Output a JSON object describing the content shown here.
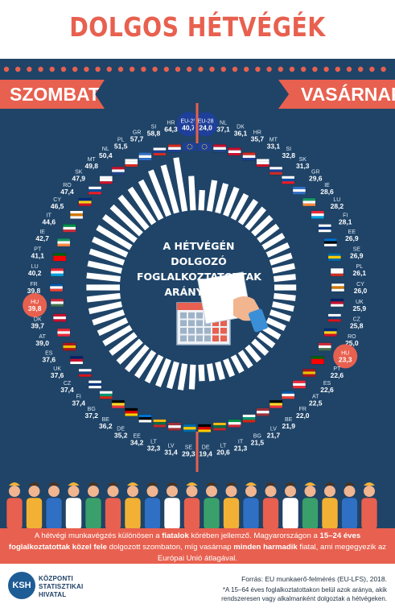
{
  "title": "DOLGOS HÉTVÉGÉK",
  "saturday_label": "SZOMBAT",
  "sunday_label": "VASÁRNAP",
  "center_title": [
    "A HÉTVÉGÉN DOLGOZÓ",
    "FOGLALKOZTATOTTAK",
    "ARÁNYA, %*"
  ],
  "colors": {
    "accent": "#e8604f",
    "panel": "#1f4468",
    "bar": "#ffffff",
    "highlight_hu": "#e8604f",
    "highlight_eu": "#1e3f9a"
  },
  "chart_data": {
    "type": "bar",
    "subtype": "radial",
    "unit": "%",
    "series": [
      {
        "name": "SZOMBAT",
        "categories": [
          "EU-28",
          "HR",
          "SI",
          "GR",
          "PL",
          "NL",
          "MT",
          "SK",
          "RO",
          "CY",
          "IT",
          "IE",
          "PT",
          "LU",
          "FR",
          "HU",
          "DK",
          "AT",
          "ES",
          "UK",
          "CZ",
          "FI",
          "BG",
          "BE",
          "DE",
          "EE",
          "LT",
          "LV",
          "SE"
        ],
        "values": [
          40.7,
          64.3,
          58.8,
          57.7,
          51.5,
          50.4,
          49.8,
          47.9,
          47.4,
          46.5,
          44.6,
          42.7,
          41.1,
          40.2,
          39.8,
          39.8,
          39.7,
          39.0,
          37.6,
          37.6,
          37.4,
          37.4,
          37.2,
          36.2,
          35.2,
          34.2,
          32.3,
          31.4,
          29.3
        ],
        "labels": [
          "40,7",
          "64,3",
          "58,8",
          "57,7",
          "51,5",
          "50,4",
          "49,8",
          "47,9",
          "47,4",
          "46,5",
          "44,6",
          "42,7",
          "41,1",
          "40,2",
          "39,8",
          "39,8",
          "39,7",
          "39,0",
          "37,6",
          "37,6",
          "37,4",
          "37,4",
          "37,2",
          "36,2",
          "35,2",
          "34,2",
          "32,3",
          "31,4",
          "29,3"
        ]
      },
      {
        "name": "VASÁRNAP",
        "categories": [
          "EU-28",
          "NL",
          "DK",
          "HR",
          "MT",
          "SI",
          "SK",
          "GR",
          "IE",
          "LU",
          "FI",
          "EE",
          "SE",
          "PL",
          "CY",
          "UK",
          "CZ",
          "RO",
          "HU",
          "PT",
          "ES",
          "AT",
          "FR",
          "BE",
          "LV",
          "BG",
          "IT",
          "LT",
          "DE"
        ],
        "values": [
          24.0,
          37.1,
          36.1,
          35.7,
          33.1,
          32.8,
          31.3,
          29.6,
          28.6,
          28.2,
          28.1,
          26.9,
          26.9,
          26.1,
          26.0,
          25.9,
          25.8,
          25.0,
          23.3,
          22.6,
          22.6,
          22.5,
          22.0,
          21.9,
          21.7,
          21.5,
          21.3,
          20.6,
          19.4
        ],
        "labels": [
          "24,0",
          "37,1",
          "36,1",
          "35,7",
          "33,1",
          "32,8",
          "31,3",
          "29,6",
          "28,6",
          "28,2",
          "28,1",
          "26,9",
          "26,9",
          "26,1",
          "26,0",
          "25,9",
          "25,8",
          "25,0",
          "23,3",
          "22,6",
          "22,6",
          "22,5",
          "22,0",
          "21,9",
          "21,7",
          "21,5",
          "21,3",
          "20,6",
          "19,4"
        ]
      }
    ],
    "highlight": [
      "HU",
      "EU-28"
    ]
  },
  "strip": {
    "p1": "A hétvégi munkavégzés különösen a ",
    "b1": "fiatalok",
    "p2": " körében jellemző. Magyarországon a ",
    "b2": "15–24 éves foglalkoztatottak közel fele",
    "p3": " dolgozott szombaton, míg vasárnap ",
    "b3": "minden harmadik",
    "p4": " fiatal, ami megegyezik az Európai Unió átlagával."
  },
  "source": "Forrás: EU munkaerő-felmérés (EU-LFS), 2018.",
  "footnote": [
    "*A 15–64 éves foglalkoztatottakon belül azok aránya, akik",
    "rendszeresen vagy alkalmanként dolgoztak a hétvégeken."
  ],
  "logo": {
    "mark": "KSH",
    "lines": [
      "KÖZPONTI",
      "STATISZTIKAI",
      "HIVATAL"
    ]
  }
}
